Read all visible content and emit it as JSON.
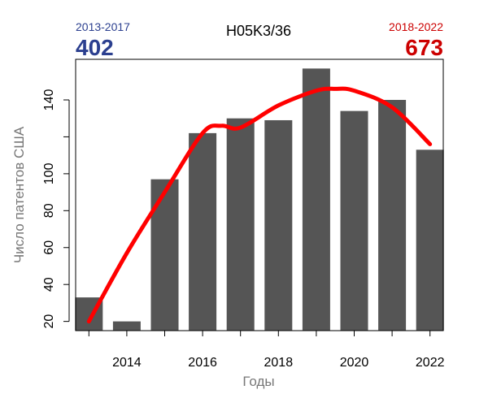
{
  "chart_data": {
    "type": "bar",
    "title": "H05K3/36",
    "xlabel": "Годы",
    "ylabel": "Число патентов США",
    "categories": [
      2013,
      2014,
      2015,
      2016,
      2017,
      2018,
      2019,
      2020,
      2021,
      2022
    ],
    "values": [
      33,
      20,
      97,
      122,
      130,
      129,
      157,
      134,
      140,
      113
    ],
    "trend_line": {
      "x": [
        2013,
        2014,
        2015,
        2016,
        2016.5,
        2017,
        2018,
        2019,
        2019.5,
        2020,
        2021,
        2022
      ],
      "y": [
        20,
        57,
        90,
        122,
        126,
        125,
        137,
        145,
        146,
        145,
        136,
        116
      ],
      "color": "#ff0000"
    },
    "x_ticks": [
      2014,
      2016,
      2018,
      2020,
      2022
    ],
    "y_ticks": [
      20,
      40,
      60,
      80,
      100,
      120,
      140
    ],
    "y_tick_labels": [
      "20",
      "40",
      "60",
      "80",
      "100",
      "",
      "140"
    ],
    "ylim": [
      15,
      162
    ],
    "xlim": [
      2012.65,
      2022.35
    ],
    "grid": false,
    "bar_color": "#555555",
    "left_summary": {
      "period": "2013-2017",
      "total": "402",
      "color": "#2b3f8f"
    },
    "right_summary": {
      "period": "2018-2022",
      "total": "673",
      "color": "#cc0000"
    }
  }
}
